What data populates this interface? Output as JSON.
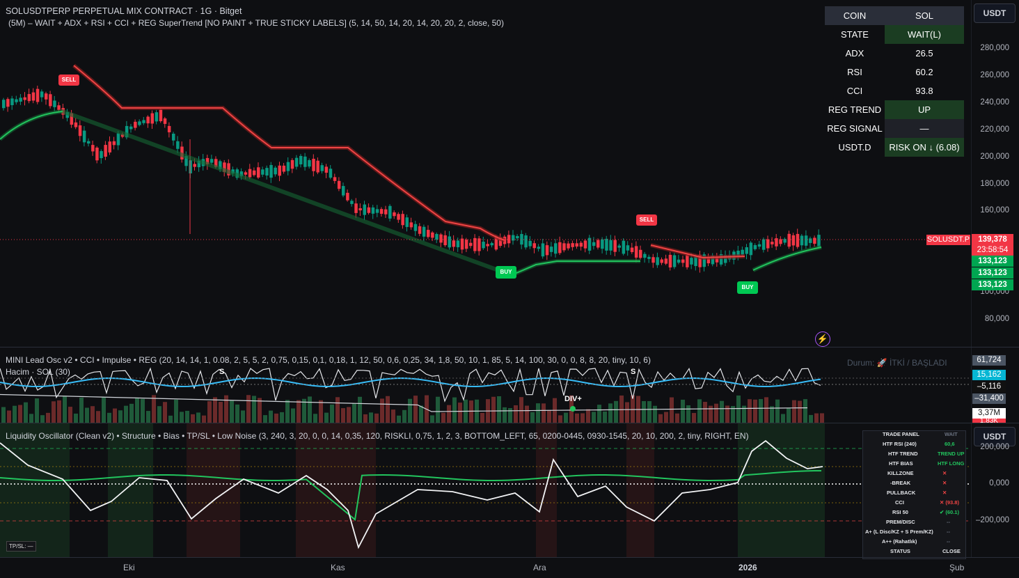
{
  "header": {
    "symbol_line": "SOLUSDTPERP PERPETUAL MIX CONTRACT · 1G · Bitget",
    "indicator_line": "(5M) – WAIT + ADX + RSI + CCI + REG SuperTrend [NO PAINT + TRUE STICKY LABELS] (5, 14, 50, 14, 20, 14, 20, 20, 2, close, 50)"
  },
  "price_axis": {
    "currency": "USDT",
    "ticks": [
      "280,000",
      "260,000",
      "240,000",
      "220,000",
      "200,000",
      "180,000",
      "160,000",
      "100,000",
      "80,000"
    ],
    "symbol_tag": "SOLUSDT.P",
    "last_price": "139,378",
    "countdown": "23:58:54",
    "level_tags": [
      "133,123",
      "133,123",
      "133,123"
    ],
    "colors": {
      "up": "#089981",
      "down": "#f23645",
      "supertrend_up": "#22c55e",
      "supertrend_down": "#ef4444",
      "tag_green": "#00a651"
    }
  },
  "status_table": {
    "rows": [
      {
        "key": "COIN",
        "value": "SOL"
      },
      {
        "key": "STATE",
        "value": "WAIT(L)"
      },
      {
        "key": "ADX",
        "value": "26.5"
      },
      {
        "key": "RSI",
        "value": "60.2"
      },
      {
        "key": "CCI",
        "value": "93.8"
      },
      {
        "key": "REG TREND",
        "value": "UP"
      },
      {
        "key": "REG SIGNAL",
        "value": "—"
      },
      {
        "key": "USDT.D",
        "value": "RISK ON ↓ (6.08)"
      }
    ]
  },
  "signals": {
    "sell": "SELL",
    "buy": "BUY",
    "div": "DIV+",
    "s": "S"
  },
  "osc1": {
    "title": "MINI Lead Osc v2 • CCI • Impulse • REG (20, 14, 14, 1, 0.08, 2, 5, 5, 2, 0,75, 0,15, 0,1, 0,18, 1, 12, 50, 0,6, 0,25, 34, 1,8, 50, 10, 1, 85, 5, 14, 100, 30, 0, 0, 8, 8, 20, tiny, 10, 6)",
    "volume_title": "Hacim · SOL (30)",
    "status_text": "Durum: 🚀 İTKİ / BAŞLADI",
    "tags": [
      "61,724",
      "15,162",
      "–5,116",
      "–31,400",
      "3,37M",
      "1,83K"
    ]
  },
  "osc2": {
    "title": "Liquidity Oscillator (Clean v2) • Structure • Bias • TP/SL • Low Noise (3, 240, 3, 20, 0, 0, 14, 0,35, 120, RISKLI, 0,75, 1, 2, 3, BOTTOM_LEFT, 65, 0200-0445, 0930-1545, 20, 10, 200, 2, tiny, RIGHT, EN)",
    "ticks": [
      "200,000",
      "0,000",
      "–200,000"
    ],
    "currency": "USDT",
    "tpsl": "TP/SL: —"
  },
  "trade_panel": {
    "rows": [
      {
        "k": "TRADE PANEL",
        "v": "WAIT"
      },
      {
        "k": "HTF RSI (240)",
        "v": "60,6"
      },
      {
        "k": "HTF TREND",
        "v": "TREND UP"
      },
      {
        "k": "HTF BIAS",
        "v": "HTF LONG"
      },
      {
        "k": "KILLZONE",
        "v": "✕"
      },
      {
        "k": "-BREAK",
        "v": "✕"
      },
      {
        "k": "PULLBACK",
        "v": "✕"
      },
      {
        "k": "CCI",
        "v": "✕ (93.8)"
      },
      {
        "k": "RSI 50",
        "v": "✔ (60.1)"
      },
      {
        "k": "PREM/DISC",
        "v": "--"
      },
      {
        "k": "A+ (L Disc/KZ + S Prem/KZ)",
        "v": "--"
      },
      {
        "k": "A++ (Rahatlık)",
        "v": "--"
      },
      {
        "k": "STATUS",
        "v": "CLOSE"
      }
    ]
  },
  "time_axis": [
    "Eki",
    "Kas",
    "Ara",
    "2026",
    "Şub"
  ]
}
